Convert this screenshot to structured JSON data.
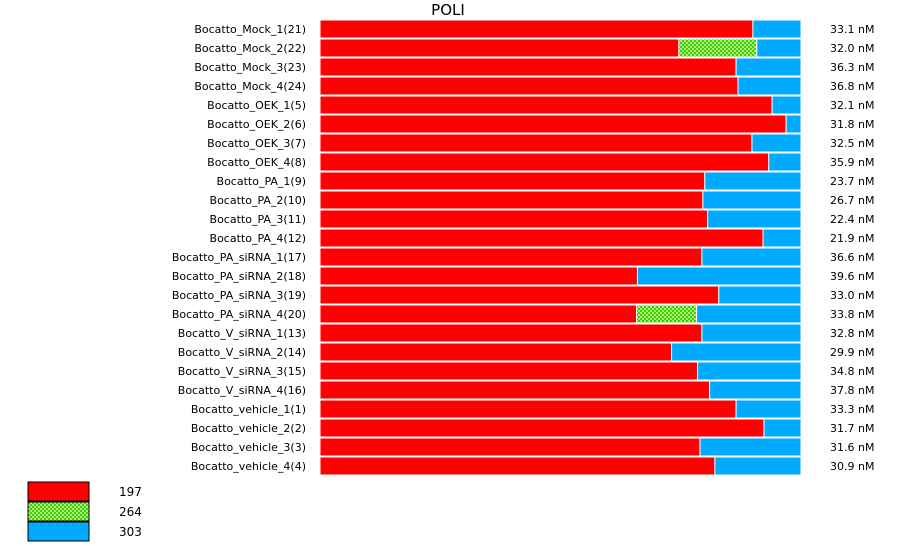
{
  "chart_data": {
    "type": "bar",
    "orientation": "horizontal",
    "stacked": "percent",
    "title": "POLI",
    "categories": [
      "Bocatto_Mock_1(21)",
      "Bocatto_Mock_2(22)",
      "Bocatto_Mock_3(23)",
      "Bocatto_Mock_4(24)",
      "Bocatto_OEK_1(5)",
      "Bocatto_OEK_2(6)",
      "Bocatto_OEK_3(7)",
      "Bocatto_OEK_4(8)",
      "Bocatto_PA_1(9)",
      "Bocatto_PA_2(10)",
      "Bocatto_PA_3(11)",
      "Bocatto_PA_4(12)",
      "Bocatto_PA_siRNA_1(17)",
      "Bocatto_PA_siRNA_2(18)",
      "Bocatto_PA_siRNA_3(19)",
      "Bocatto_PA_siRNA_4(20)",
      "Bocatto_V_siRNA_1(13)",
      "Bocatto_V_siRNA_2(14)",
      "Bocatto_V_siRNA_3(15)",
      "Bocatto_V_siRNA_4(16)",
      "Bocatto_vehicle_1(1)",
      "Bocatto_vehicle_2(2)",
      "Bocatto_vehicle_3(3)",
      "Bocatto_vehicle_4(4)"
    ],
    "concentrations": [
      "33.1 nM",
      "32.0 nM",
      "36.3 nM",
      "36.8 nM",
      "32.1 nM",
      "31.8 nM",
      "32.5 nM",
      "35.9 nM",
      "23.7 nM",
      "26.7 nM",
      "22.4 nM",
      "21.9 nM",
      "36.6 nM",
      "39.6 nM",
      "33.0 nM",
      "33.8 nM",
      "32.8 nM",
      "29.9 nM",
      "34.8 nM",
      "37.8 nM",
      "33.3 nM",
      "31.7 nM",
      "31.6 nM",
      "30.9 nM"
    ],
    "series": [
      {
        "name": "197",
        "color": "#ff0000",
        "pattern": "solid",
        "values": [
          90.0,
          74.6,
          86.5,
          86.9,
          94.0,
          96.9,
          89.8,
          93.3,
          80.0,
          79.6,
          80.6,
          92.1,
          79.4,
          66.0,
          82.9,
          65.8,
          79.4,
          73.1,
          78.5,
          81.0,
          86.5,
          92.3,
          79.0,
          82.1
        ]
      },
      {
        "name": "264",
        "color": "#44cc00",
        "pattern": "checker",
        "values": [
          0,
          16.2,
          0,
          0,
          0,
          0,
          0,
          0,
          0,
          0,
          0,
          0,
          0,
          0,
          0,
          12.5,
          0,
          0,
          0,
          0,
          0,
          0,
          0,
          0
        ]
      },
      {
        "name": "303",
        "color": "#00aaff",
        "pattern": "solid",
        "values": [
          10.0,
          9.2,
          13.5,
          13.1,
          6.0,
          3.1,
          10.2,
          6.7,
          20.0,
          20.4,
          19.4,
          7.9,
          20.6,
          34.0,
          17.1,
          21.7,
          20.6,
          26.9,
          21.5,
          19.0,
          13.5,
          7.7,
          21.0,
          17.9
        ]
      }
    ],
    "xlim": [
      0,
      100
    ],
    "grid": false,
    "legend_position": "bottom-left"
  }
}
